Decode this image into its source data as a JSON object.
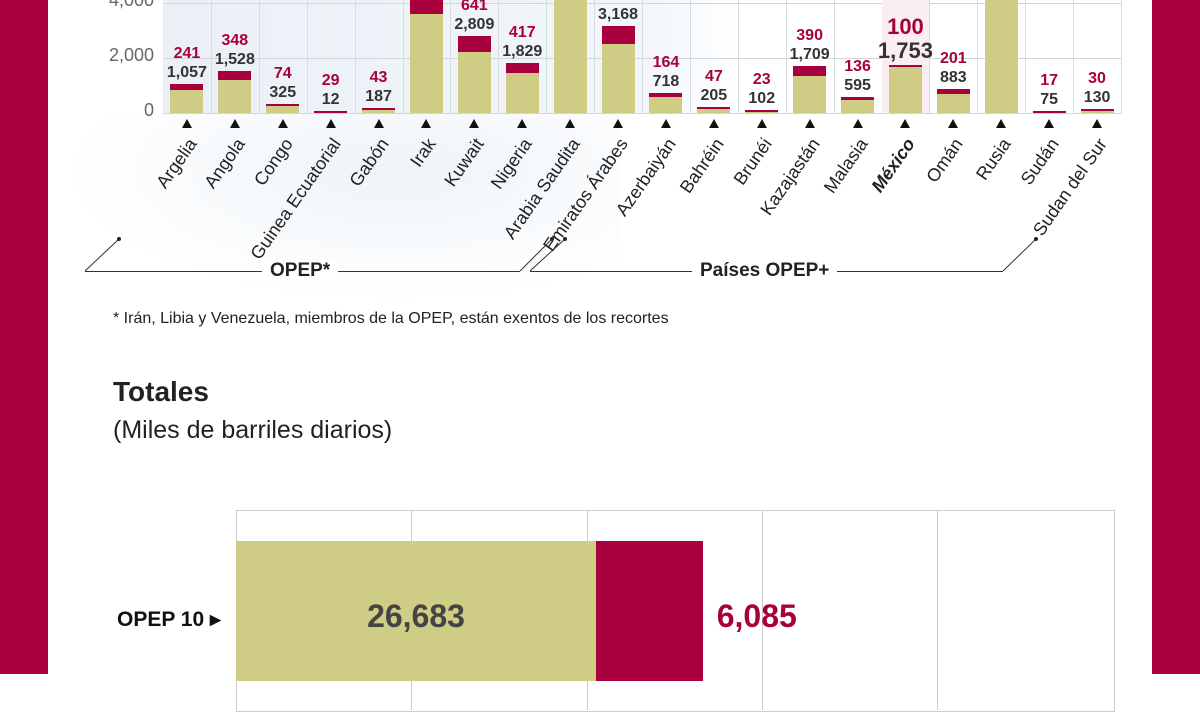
{
  "colors": {
    "base": "#cfcc85",
    "cut": "#a8003c",
    "frame": "#a8003c",
    "highlight_bg": "#fbeef0"
  },
  "chart_data": [
    {
      "type": "bar",
      "stacked": true,
      "ylim": [
        0,
        4000
      ],
      "yticks": [
        "0",
        "2,000",
        "4,000"
      ],
      "grid": true,
      "categories": [
        "Argelia",
        "Angola",
        "Congo",
        "Guinea Ecuatorial",
        "Gabón",
        "Irak",
        "Kuwait",
        "Nigeria",
        "Arabia Saudita",
        "Emiratos Árabes",
        "Azerbaiyán",
        "Bahréin",
        "Brunéi",
        "Kazajastán",
        "Malasia",
        "México",
        "Omán",
        "Rusia",
        "Sudán",
        "Sudan del Sur"
      ],
      "highlight": "México",
      "total_labels": [
        "1,057",
        "1,528",
        "325",
        "12",
        "187",
        null,
        "2,809",
        "1,829",
        null,
        "3,168",
        "718",
        "205",
        "102",
        "1,709",
        "595",
        "1,753",
        "883",
        null,
        "75",
        "130"
      ],
      "cut_labels": [
        "241",
        "348",
        "74",
        "29",
        "43",
        null,
        "641",
        "417",
        null,
        "722",
        "164",
        "47",
        "23",
        "390",
        "136",
        "100",
        "201",
        null,
        "17",
        "30"
      ],
      "totals": [
        1057,
        1528,
        325,
        12,
        187,
        null,
        2809,
        1829,
        null,
        3168,
        718,
        205,
        102,
        1709,
        595,
        1753,
        883,
        null,
        75,
        130
      ],
      "cuts": [
        241,
        348,
        74,
        29,
        43,
        null,
        641,
        417,
        null,
        722,
        164,
        47,
        23,
        390,
        136,
        100,
        201,
        null,
        17,
        30
      ],
      "groups": [
        {
          "label": "OPEP*",
          "from": "Argelia",
          "to": "Emiratos Árabes"
        },
        {
          "label": "Países OPEP+",
          "from": "Azerbaiyán",
          "to": "Sudan del Sur"
        }
      ],
      "footnote": "* Irán, Libia y Venezuela, miembros de la OPEP, están exentos de los recortes"
    },
    {
      "type": "bar",
      "orientation": "horizontal",
      "stacked": true,
      "title": "Totales",
      "subtitle": "(Miles de barriles diarios)",
      "categories": [
        "OPEP 10"
      ],
      "category_labels": [
        "OPEP 10 ▸"
      ],
      "series": [
        {
          "values": [
            26683
          ],
          "labels": [
            "26,683"
          ]
        },
        {
          "values": [
            6085
          ],
          "labels": [
            "6,085"
          ]
        }
      ],
      "xlim": [
        0,
        65000
      ],
      "grid": true
    }
  ]
}
